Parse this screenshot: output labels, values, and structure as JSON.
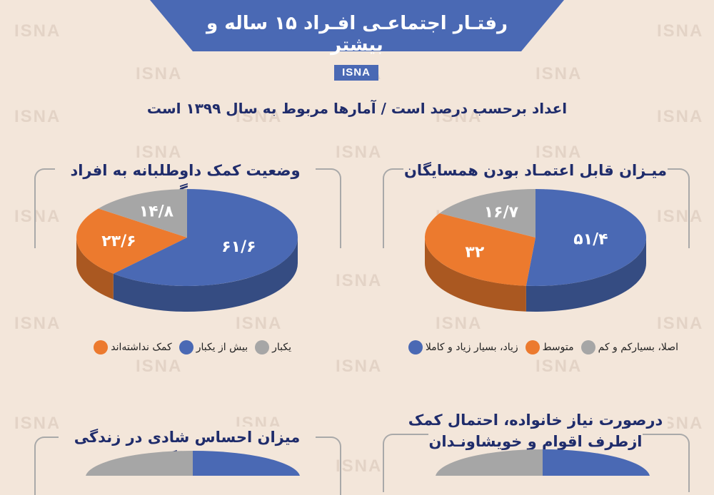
{
  "watermark": "ISNA",
  "header": {
    "title": "رفتـار اجتماعـی افـراد ۱۵ ساله و بیشتر",
    "brand": "ISNA",
    "subtitle": "اعداد برحسب درصد است     /     آمارها مربوط به سال ۱۳۹۹ است"
  },
  "colors": {
    "blue": "#4a69b4",
    "orange": "#ec7a2e",
    "gray": "#a6a6a6",
    "navy": "#1f2c6b",
    "background": "#f3e6da"
  },
  "charts": {
    "trust": {
      "title": "میـزان قابل اعتمـاد بودن همسایگان",
      "legend": [
        "زیاد، بسیار زیاد و کاملا",
        "متوسط",
        "اصلا، بسیارکم و کم"
      ]
    },
    "help": {
      "title": "وضعیت کمک داوطلبانه به افراد دیگر",
      "legend": [
        "کمک نداشته‌اند",
        "بیش از یکبار",
        "یکبار"
      ]
    },
    "family_help": {
      "title": [
        "درصورت نیاز خانواده، احتمال کمک",
        "ازطرف اقوام و خویشاونـدان"
      ]
    },
    "happiness": {
      "title": "میزان احساس شادی در زندگی خانوادگی"
    }
  },
  "chart_data": [
    {
      "type": "pie",
      "title": "میـزان قابل اعتمـاد بودن همسایگان",
      "categories": [
        "زیاد، بسیار زیاد و کاملا",
        "متوسط",
        "اصلا، بسیارکم و کم"
      ],
      "values": [
        51.4,
        32,
        16.7
      ],
      "labels": [
        "۵۱/۴",
        "۳۲",
        "۱۶/۷"
      ],
      "colors": [
        "#4a69b4",
        "#ec7a2e",
        "#a6a6a6"
      ]
    },
    {
      "type": "pie",
      "title": "وضعیت کمک داوطلبانه به افراد دیگر",
      "categories": [
        "بیش از یکبار",
        "کمک نداشته‌اند",
        "یکبار"
      ],
      "values": [
        61.6,
        23.6,
        14.8
      ],
      "labels": [
        "۶۱/۶",
        "۲۳/۶",
        "۱۴/۸"
      ],
      "colors": [
        "#4a69b4",
        "#ec7a2e",
        "#a6a6a6"
      ]
    }
  ]
}
